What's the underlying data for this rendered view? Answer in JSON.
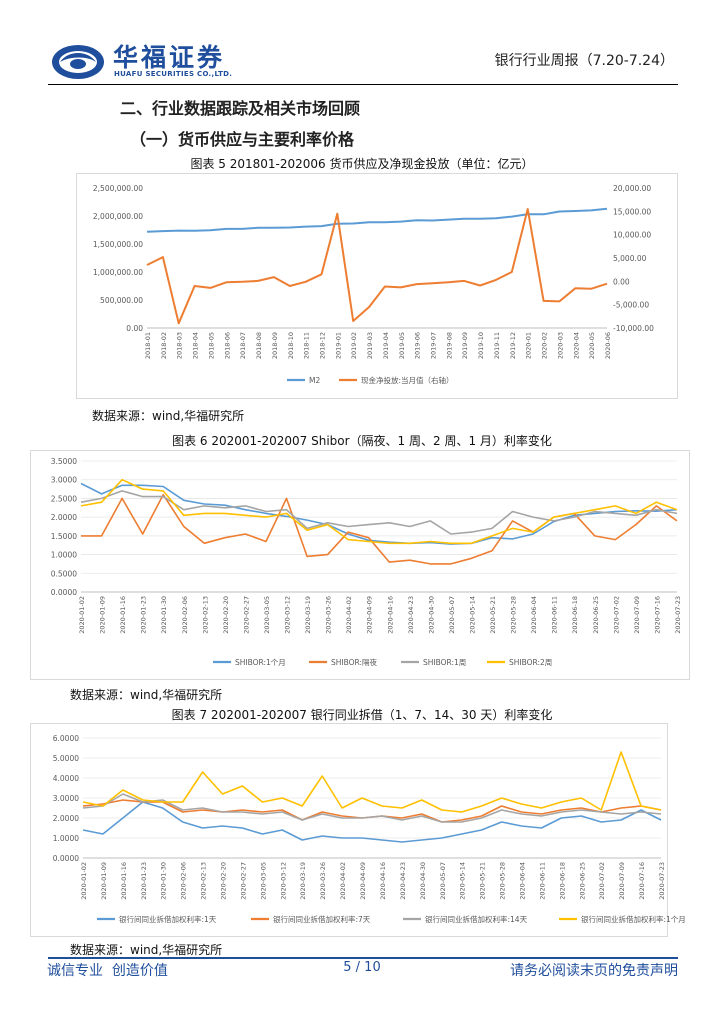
{
  "header": {
    "logo_cn": "华福证券",
    "logo_en": "HUAFU SECURITIES CO.,LTD.",
    "report_title": "银行行业周报（7.20-7.24）"
  },
  "section": {
    "h2": "二、行业数据跟踪及相关市场回顾",
    "h3": "（一）货币供应与主要利率价格"
  },
  "colors": {
    "blue": "#5b9bd5",
    "orange": "#ed7d31",
    "gray": "#a5a5a5",
    "yellow": "#ffc000",
    "brand": "#1f4e9c"
  },
  "figures": [
    {
      "title": "图表 5 201801-202006 货币供应及净现金投放（单位：亿元）",
      "source": "数据来源：wind,华福研究所"
    },
    {
      "title": "图表 6   202001-202007 Shibor（隔夜、1 周、2 周、1 月）利率变化",
      "source": "数据来源：wind,华福研究所"
    },
    {
      "title": "图表 7   202001-202007 银行同业拆借（1、7、14、30 天）利率变化",
      "source": "数据来源：wind,华福研究所"
    }
  ],
  "chart_data": [
    {
      "type": "line",
      "x": [
        "2018-01",
        "2018-02",
        "2018-03",
        "2018-04",
        "2018-05",
        "2018-06",
        "2018-07",
        "2018-08",
        "2018-09",
        "2018-10",
        "2018-11",
        "2018-12",
        "2019-01",
        "2019-02",
        "2019-03",
        "2019-04",
        "2019-05",
        "2019-06",
        "2019-07",
        "2019-08",
        "2019-09",
        "2019-10",
        "2019-11",
        "2019-12",
        "2020-01",
        "2020-02",
        "2020-03",
        "2020-04",
        "2020-05",
        "2020-06"
      ],
      "left_ticks": [
        "2,500,000.00",
        "2,000,000.00",
        "1,500,000.00",
        "1,000,000.00",
        "500,000.00",
        "0.00"
      ],
      "right_ticks": [
        "20,000.00",
        "15,000.00",
        "10,000.00",
        "5,000.00",
        "0.00",
        "-5,000.00",
        "-10,000.00"
      ],
      "ylim": [
        0,
        2500000
      ],
      "y2lim": [
        -10000,
        20000
      ],
      "series": [
        {
          "name": "M2",
          "axis": "left",
          "values": [
            1720000,
            1730000,
            1740000,
            1738000,
            1745000,
            1770000,
            1770000,
            1790000,
            1790000,
            1795000,
            1810000,
            1820000,
            1860000,
            1866000,
            1890000,
            1890000,
            1900000,
            1925000,
            1920000,
            1935000,
            1950000,
            1950000,
            1960000,
            1990000,
            2030000,
            2030000,
            2080000,
            2090000,
            2100000,
            2130000
          ]
        },
        {
          "name": "现金净投放:当月值（右轴）",
          "axis": "right",
          "values": [
            3500,
            5200,
            -9000,
            -1000,
            -1400,
            -200,
            -100,
            100,
            900,
            -1000,
            -100,
            1500,
            14500,
            -8500,
            -5500,
            -1100,
            -1300,
            -600,
            -400,
            -200,
            100,
            -900,
            300,
            2000,
            15500,
            -4200,
            -4300,
            -1500,
            -1600,
            -500
          ]
        }
      ]
    },
    {
      "type": "line",
      "x": [
        "2020-01-02",
        "2020-01-09",
        "2020-01-16",
        "2020-01-23",
        "2020-01-30",
        "2020-02-06",
        "2020-02-13",
        "2020-02-20",
        "2020-02-27",
        "2020-03-05",
        "2020-03-12",
        "2020-03-19",
        "2020-03-26",
        "2020-04-02",
        "2020-04-09",
        "2020-04-16",
        "2020-04-23",
        "2020-04-30",
        "2020-05-07",
        "2020-05-14",
        "2020-05-21",
        "2020-05-28",
        "2020-06-04",
        "2020-06-11",
        "2020-06-18",
        "2020-06-25",
        "2020-07-02",
        "2020-07-09",
        "2020-07-16",
        "2020-07-23"
      ],
      "y_ticks": [
        "3.5000",
        "3.0000",
        "2.5000",
        "2.0000",
        "1.5000",
        "1.0000",
        "0.5000",
        "0.0000"
      ],
      "ylim": [
        0,
        3.5
      ],
      "series": [
        {
          "name": "SHIBOR:1个月",
          "values": [
            2.9,
            2.62,
            2.85,
            2.85,
            2.82,
            2.45,
            2.35,
            2.32,
            2.2,
            2.1,
            2.02,
            1.92,
            1.8,
            1.55,
            1.38,
            1.33,
            1.3,
            1.32,
            1.28,
            1.3,
            1.45,
            1.42,
            1.55,
            1.88,
            2.05,
            2.1,
            2.15,
            2.17,
            2.16,
            2.2
          ]
        },
        {
          "name": "SHIBOR:隔夜",
          "values": [
            1.5,
            1.5,
            2.5,
            1.55,
            2.6,
            1.75,
            1.3,
            1.45,
            1.55,
            1.35,
            2.5,
            0.95,
            1.0,
            1.6,
            1.45,
            0.8,
            0.85,
            0.75,
            0.75,
            0.9,
            1.1,
            1.9,
            1.6,
            2.0,
            2.1,
            1.5,
            1.4,
            1.8,
            2.3,
            1.9
          ]
        },
        {
          "name": "SHIBOR:1周",
          "values": [
            2.4,
            2.5,
            2.7,
            2.55,
            2.55,
            2.2,
            2.3,
            2.25,
            2.3,
            2.15,
            2.2,
            1.7,
            1.85,
            1.75,
            1.8,
            1.85,
            1.75,
            1.9,
            1.55,
            1.6,
            1.7,
            2.15,
            2.0,
            1.9,
            2.0,
            2.15,
            2.1,
            2.05,
            2.2,
            2.1
          ]
        },
        {
          "name": "SHIBOR:2周",
          "values": [
            2.3,
            2.4,
            3.0,
            2.75,
            2.7,
            2.05,
            2.1,
            2.1,
            2.05,
            2.0,
            2.1,
            1.65,
            1.8,
            1.4,
            1.35,
            1.3,
            1.3,
            1.35,
            1.3,
            1.3,
            1.5,
            1.7,
            1.6,
            2.0,
            2.1,
            2.2,
            2.3,
            2.1,
            2.4,
            2.2
          ]
        }
      ]
    },
    {
      "type": "line",
      "x": [
        "2020-01-02",
        "2020-01-09",
        "2020-01-16",
        "2020-01-23",
        "2020-01-30",
        "2020-02-06",
        "2020-02-13",
        "2020-02-20",
        "2020-02-27",
        "2020-03-05",
        "2020-03-12",
        "2020-03-19",
        "2020-03-26",
        "2020-04-02",
        "2020-04-09",
        "2020-04-16",
        "2020-04-23",
        "2020-04-30",
        "2020-05-07",
        "2020-05-14",
        "2020-05-21",
        "2020-05-28",
        "2020-06-04",
        "2020-06-11",
        "2020-06-18",
        "2020-06-25",
        "2020-07-02",
        "2020-07-09",
        "2020-07-16",
        "2020-07-23"
      ],
      "y_ticks": [
        "6.0000",
        "5.0000",
        "4.0000",
        "3.0000",
        "2.0000",
        "1.0000",
        "0.0000"
      ],
      "ylim": [
        0,
        6
      ],
      "series": [
        {
          "name": "银行间同业拆借加权利率:1天",
          "values": [
            1.4,
            1.2,
            2.0,
            2.8,
            2.5,
            1.8,
            1.5,
            1.6,
            1.5,
            1.2,
            1.4,
            0.9,
            1.1,
            1.0,
            1.0,
            0.9,
            0.8,
            0.9,
            1.0,
            1.2,
            1.4,
            1.8,
            1.6,
            1.5,
            2.0,
            2.1,
            1.8,
            1.9,
            2.4,
            1.9
          ]
        },
        {
          "name": "银行间同业拆借加权利率:7天",
          "values": [
            2.6,
            2.7,
            2.9,
            2.8,
            2.8,
            2.3,
            2.4,
            2.3,
            2.4,
            2.3,
            2.4,
            1.9,
            2.3,
            2.1,
            2.0,
            2.1,
            2.0,
            2.2,
            1.8,
            1.9,
            2.1,
            2.6,
            2.3,
            2.2,
            2.4,
            2.5,
            2.3,
            2.5,
            2.6,
            2.4
          ]
        },
        {
          "name": "银行间同业拆借加权利率:14天",
          "values": [
            2.5,
            2.6,
            3.2,
            2.8,
            2.9,
            2.4,
            2.5,
            2.3,
            2.3,
            2.2,
            2.3,
            1.9,
            2.2,
            2.0,
            2.0,
            2.1,
            1.9,
            2.1,
            1.8,
            1.8,
            2.0,
            2.4,
            2.2,
            2.1,
            2.3,
            2.4,
            2.3,
            2.2,
            2.3,
            2.2
          ]
        },
        {
          "name": "银行间同业拆借加权利率:1个月",
          "values": [
            2.8,
            2.6,
            3.4,
            2.9,
            2.8,
            2.8,
            4.3,
            3.2,
            3.6,
            2.8,
            3.0,
            2.6,
            4.1,
            2.5,
            3.0,
            2.6,
            2.5,
            2.9,
            2.4,
            2.3,
            2.6,
            3.0,
            2.7,
            2.5,
            2.8,
            3.0,
            2.4,
            5.3,
            2.6,
            2.4
          ]
        }
      ]
    }
  ]
}
